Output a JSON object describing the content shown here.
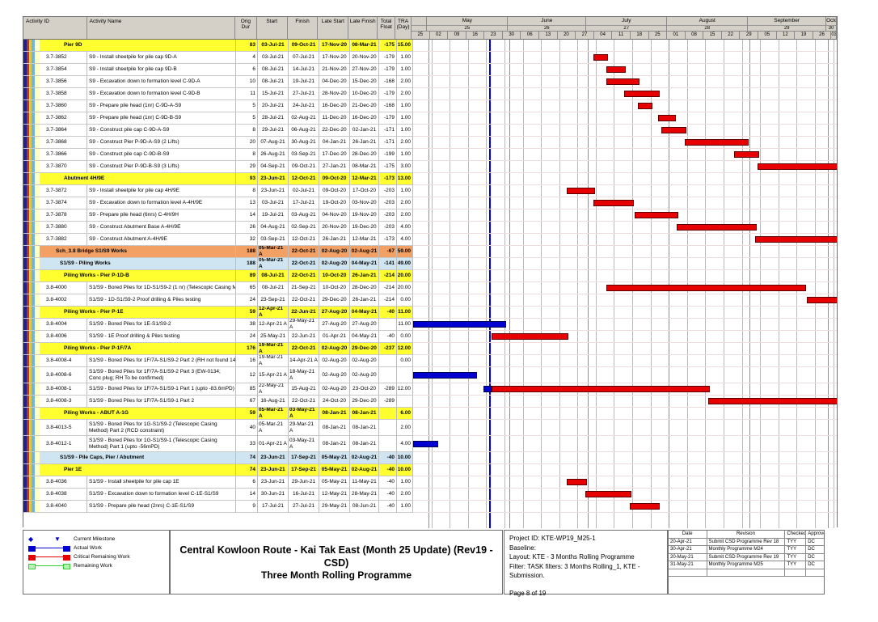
{
  "table": {
    "columns": [
      "Activity ID",
      "Activity Name",
      "Orig Dur",
      "Start",
      "Finish",
      "Late Start",
      "Late Finish",
      "Total Float",
      "TRA (Day)"
    ],
    "rows": [
      {
        "t": "g1",
        "name": "Pier 9D",
        "dur": "83",
        "s": "03-Jul-21",
        "f": "09-Oct-21",
        "ls": "17-Nov-20",
        "lf": "08-Mar-21",
        "fl": "-175",
        "tra": "15.00"
      },
      {
        "t": "task",
        "id": "3.7-3852",
        "name": "S9 - Install sheetpile for pile cap 9D-A",
        "dur": "4",
        "s": "03-Jul-21",
        "f": "07-Jul-21",
        "ls": "17-Nov-20",
        "lf": "20-Nov-20",
        "fl": "-179",
        "tra": "1.00"
      },
      {
        "t": "task",
        "id": "3.7-3854",
        "name": "S9 - Install sheetpile for pile cap 9D-B",
        "dur": "6",
        "s": "08-Jul-21",
        "f": "14-Jul-21",
        "ls": "21-Nov-20",
        "lf": "27-Nov-20",
        "fl": "-179",
        "tra": "1.00"
      },
      {
        "t": "task",
        "id": "3.7-3856",
        "name": "S9 - Excavation down to formation level C-9D-A",
        "dur": "10",
        "s": "08-Jul-21",
        "f": "19-Jul-21",
        "ls": "04-Dec-20",
        "lf": "15-Dec-20",
        "fl": "-168",
        "tra": "2.00"
      },
      {
        "t": "task",
        "id": "3.7-3858",
        "name": "S9 - Excavation down to formation level C-9D-B",
        "dur": "11",
        "s": "15-Jul-21",
        "f": "27-Jul-21",
        "ls": "28-Nov-20",
        "lf": "10-Dec-20",
        "fl": "-179",
        "tra": "2.00"
      },
      {
        "t": "task",
        "id": "3.7-3860",
        "name": "S9 - Prepare pile head (1nr) C-9D-A-S9",
        "dur": "5",
        "s": "20-Jul-21",
        "f": "24-Jul-21",
        "ls": "16-Dec-20",
        "lf": "21-Dec-20",
        "fl": "-168",
        "tra": "1.00"
      },
      {
        "t": "task",
        "id": "3.7-3862",
        "name": "S9 - Prepare pile head (1nr) C-9D-B-S9",
        "dur": "5",
        "s": "28-Jul-21",
        "f": "02-Aug-21",
        "ls": "11-Dec-20",
        "lf": "16-Dec-20",
        "fl": "-179",
        "tra": "1.00"
      },
      {
        "t": "task",
        "id": "3.7-3864",
        "name": "S9 - Construct pile cap C-9D-A-S9",
        "dur": "8",
        "s": "29-Jul-21",
        "f": "06-Aug-21",
        "ls": "22-Dec-20",
        "lf": "02-Jan-21",
        "fl": "-171",
        "tra": "1.00"
      },
      {
        "t": "task",
        "id": "3.7-3868",
        "name": "S9 - Construct Pier P-9D-A-S9 (2 Lifts)",
        "dur": "20",
        "s": "07-Aug-21",
        "f": "30-Aug-21",
        "ls": "04-Jan-21",
        "lf": "26-Jan-21",
        "fl": "-171",
        "tra": "2.00"
      },
      {
        "t": "task",
        "id": "3.7-3866",
        "name": "S9 - Construct pile cap C-9D-B-S9",
        "dur": "8",
        "s": "26-Aug-21",
        "f": "03-Sep-21",
        "ls": "17-Dec-20",
        "lf": "28-Dec-20",
        "fl": "-199",
        "tra": "1.00"
      },
      {
        "t": "task",
        "id": "3.7-3870",
        "name": "S9 - Construct Pier P-9D-B-S9 (3 Lifts)",
        "dur": "29",
        "s": "04-Sep-21",
        "f": "09-Oct-21",
        "ls": "27-Jan-21",
        "lf": "08-Mar-21",
        "fl": "-175",
        "tra": "3.00"
      },
      {
        "t": "g1",
        "name": "Abutment 4H/9E",
        "dur": "93",
        "s": "23-Jun-21",
        "f": "12-Oct-21",
        "ls": "09-Oct-20",
        "lf": "12-Mar-21",
        "fl": "-173",
        "tra": "13.00"
      },
      {
        "t": "task",
        "id": "3.7-3872",
        "name": "S9 - Install sheetpile for pile cap 4H/9E",
        "dur": "8",
        "s": "23-Jun-21",
        "f": "02-Jul-21",
        "ls": "09-Oct-20",
        "lf": "17-Oct-20",
        "fl": "-203",
        "tra": "1.00"
      },
      {
        "t": "task",
        "id": "3.7-3874",
        "name": "S9 - Excavation down to formation level A-4H/9E",
        "dur": "13",
        "s": "03-Jul-21",
        "f": "17-Jul-21",
        "ls": "19-Oct-20",
        "lf": "03-Nov-20",
        "fl": "-203",
        "tra": "2.00"
      },
      {
        "t": "task",
        "id": "3.7-3878",
        "name": "S9 - Prepare pile head (6nrs) C-4H/9H",
        "dur": "14",
        "s": "19-Jul-21",
        "f": "03-Aug-21",
        "ls": "04-Nov-20",
        "lf": "19-Nov-20",
        "fl": "-203",
        "tra": "2.00"
      },
      {
        "t": "task",
        "id": "3.7-3880",
        "name": "S9 - Construct Abutment Base A-4H/9E",
        "dur": "26",
        "s": "04-Aug-21",
        "f": "02-Sep-21",
        "ls": "20-Nov-20",
        "lf": "19-Dec-20",
        "fl": "-203",
        "tra": "4.00"
      },
      {
        "t": "task",
        "id": "3.7-3882",
        "name": "S9 - Construct Abutment A-4H/9E",
        "dur": "32",
        "s": "03-Sep-21",
        "f": "12-Oct-21",
        "ls": "26-Jan-21",
        "lf": "12-Mar-21",
        "fl": "-173",
        "tra": "4.00"
      },
      {
        "t": "gor",
        "name": "Sch_3.8 Bridge S1/S9 Works",
        "dur": "188",
        "s": "05-Mar-21 A",
        "f": "22-Oct-21",
        "ls": "02-Aug-20",
        "lf": "02-Aug-21",
        "fl": "-67",
        "tra": "59.00"
      },
      {
        "t": "gbl",
        "name": "S1/S9 - Piling Works",
        "dur": "188",
        "s": "05-Mar-21 A",
        "f": "22-Oct-21",
        "ls": "02-Aug-20",
        "lf": "04-May-21",
        "fl": "-141",
        "tra": "49.00"
      },
      {
        "t": "g1",
        "name": "Piling Works - Pier P-1D-B",
        "dur": "89",
        "s": "08-Jul-21",
        "f": "22-Oct-21",
        "ls": "10-Oct-20",
        "lf": "26-Jan-21",
        "fl": "-214",
        "tra": "20.00"
      },
      {
        "t": "task",
        "id": "3.8-4000",
        "name": "S1/S9 - Bored Piles for 1D-S1/S9-2 (1 nr) (Telescopic Casing Method)",
        "dur": "65",
        "s": "08-Jul-21",
        "f": "21-Sep-21",
        "ls": "10-Oct-20",
        "lf": "28-Dec-20",
        "fl": "-214",
        "tra": "20.00"
      },
      {
        "t": "task",
        "id": "3.8-4002",
        "name": "S1/S9 - 1D-S1/S9-2 Proof drilling & Piles testing",
        "dur": "24",
        "s": "23-Sep-21",
        "f": "22-Oct-21",
        "ls": "29-Dec-20",
        "lf": "26-Jan-21",
        "fl": "-214",
        "tra": "0.00"
      },
      {
        "t": "g1",
        "name": "Piling Works - Pier P-1E",
        "dur": "59",
        "s": "12-Apr-21 A",
        "f": "22-Jun-21",
        "ls": "27-Aug-20",
        "lf": "04-May-21",
        "fl": "-40",
        "tra": "11.00"
      },
      {
        "t": "task",
        "id": "3.8-4004",
        "name": "S1/S9 - Bored Piles for 1E-S1/S9-2",
        "dur": "38",
        "s": "12-Apr-21 A",
        "f": "29-May-21 A",
        "ls": "27-Aug-20",
        "lf": "27-Aug-20",
        "fl": "",
        "tra": "11.00"
      },
      {
        "t": "task",
        "id": "3.8-4006",
        "name": "S1/S9 - 1E Proof drilling & Piles testing",
        "dur": "24",
        "s": "25-May-21",
        "f": "22-Jun-21",
        "ls": "01-Apr-21",
        "lf": "04-May-21",
        "fl": "-40",
        "tra": "0.00"
      },
      {
        "t": "g1",
        "name": "Piling Works - Pier P-1F/7A",
        "dur": "176",
        "s": "19-Mar-21 A",
        "f": "22-Oct-21",
        "ls": "02-Aug-20",
        "lf": "29-Dec-20",
        "fl": "-237",
        "tra": "12.00"
      },
      {
        "t": "task",
        "id": "3.8-4008-4",
        "name": "S1/S9 - Bored Piles for 1F/7A-S1/S9-2 Part 2 (RH not found 14/4/21)",
        "dur": "16",
        "s": "19-Mar-21 A",
        "f": "14-Apr-21 A",
        "ls": "02-Aug-20",
        "lf": "02-Aug-20",
        "fl": "",
        "tra": "0.00"
      },
      {
        "t": "task2",
        "id": "3.8-4008-6",
        "name": "S1/S9 - Bored Piles for 1F/7A-S1/S9-2 Part 3 (EW-0134; Conc plug; RH To be confirmed)",
        "dur": "12",
        "s": "15-Apr-21 A",
        "f": "18-May-21 A",
        "ls": "02-Aug-20",
        "lf": "02-Aug-20",
        "fl": "",
        "tra": ""
      },
      {
        "t": "task",
        "id": "3.8-4008-1",
        "name": "S1/S9 - Bored Piles for 1F/7A-S1/S9-1 Part 1 (upto -83.6mPD)",
        "dur": "85",
        "s": "22-May-21 A",
        "f": "15-Aug-21",
        "ls": "02-Aug-20",
        "lf": "23-Oct-20",
        "fl": "-289",
        "tra": "12.00"
      },
      {
        "t": "task",
        "id": "3.8-4008-3",
        "name": "S1/S9 - Bored Piles for 1F/7A-S1/S9-1 Part 2",
        "dur": "67",
        "s": "16-Aug-21",
        "f": "22-Oct-21",
        "ls": "24-Oct-20",
        "lf": "29-Dec-20",
        "fl": "-289",
        "tra": ""
      },
      {
        "t": "g1",
        "name": "Piling Works - ABUT A-1G",
        "dur": "59",
        "s": "05-Mar-21 A",
        "f": "03-May-21 A",
        "ls": "08-Jan-21",
        "lf": "08-Jan-21",
        "fl": "",
        "tra": "6.00"
      },
      {
        "t": "task2",
        "id": "3.8-4013-5",
        "name": "S1/S9 - Bored Piles for 1G-S1/S9-2 (Telescopic Casing Method) Part 2 (RCD constraint)",
        "dur": "40",
        "s": "05-Mar-21 A",
        "f": "29-Mar-21 A",
        "ls": "08-Jan-21",
        "lf": "08-Jan-21",
        "fl": "",
        "tra": "2.00"
      },
      {
        "t": "task2",
        "id": "3.8-4012-1",
        "name": "S1/S9 - Bored Piles for 1G-S1/S9-1 (Telescopic Casing Method) Part 1 (upto -56mPD)",
        "dur": "33",
        "s": "01-Apr-21 A",
        "f": "03-May-21 A",
        "ls": "08-Jan-21",
        "lf": "08-Jan-21",
        "fl": "",
        "tra": "4.00"
      },
      {
        "t": "gbl",
        "name": "S1/S9 - Pile Caps, Pier / Abutment",
        "dur": "74",
        "s": "23-Jun-21",
        "f": "17-Sep-21",
        "ls": "05-May-21",
        "lf": "02-Aug-21",
        "fl": "-40",
        "tra": "10.00"
      },
      {
        "t": "g1",
        "name": "Pier 1E",
        "dur": "74",
        "s": "23-Jun-21",
        "f": "17-Sep-21",
        "ls": "05-May-21",
        "lf": "02-Aug-21",
        "fl": "-40",
        "tra": "10.00"
      },
      {
        "t": "task",
        "id": "3.8-4036",
        "name": "S1/S9 - Install sheetpile for pile cap 1E",
        "dur": "6",
        "s": "23-Jun-21",
        "f": "29-Jun-21",
        "ls": "05-May-21",
        "lf": "11-May-21",
        "fl": "-40",
        "tra": "1.00"
      },
      {
        "t": "task",
        "id": "3.8-4038",
        "name": "S1/S9 - Excavation down to formation level C-1E-S1/S9",
        "dur": "14",
        "s": "30-Jun-21",
        "f": "16-Jul-21",
        "ls": "12-May-21",
        "lf": "28-May-21",
        "fl": "-40",
        "tra": "2.00"
      },
      {
        "t": "task",
        "id": "3.8-4040",
        "name": "S1/S9 - Prepare pile head (2nrs) C-1E-S1/S9",
        "dur": "9",
        "s": "17-Jul-21",
        "f": "27-Jul-21",
        "ls": "29-May-21",
        "lf": "08-Jun-21",
        "fl": "-40",
        "tra": "1.00"
      }
    ]
  },
  "chart_data": {
    "type": "bar",
    "variant": "gantt",
    "title": "Three Month Rolling Programme - activity bars",
    "window": {
      "start_label": "25-Apr-21",
      "end_label": "03-Oct-21",
      "total_days": 163,
      "unit": "weekly columns"
    },
    "data_date_day": 29,
    "months": [
      {
        "name": "",
        "num": "",
        "d0": 0,
        "d1": 6
      },
      {
        "name": "May",
        "num": "25",
        "d0": 6,
        "d1": 37
      },
      {
        "name": "June",
        "num": "26",
        "d0": 37,
        "d1": 67
      },
      {
        "name": "July",
        "num": "27",
        "d0": 67,
        "d1": 98
      },
      {
        "name": "August",
        "num": "28",
        "d0": 98,
        "d1": 129
      },
      {
        "name": "September",
        "num": "29",
        "d0": 129,
        "d1": 159
      },
      {
        "name": "October",
        "num": "30",
        "d0": 159,
        "d1": 163
      }
    ],
    "weeks": [
      "25",
      "02",
      "09",
      "16",
      "23",
      "30",
      "06",
      "13",
      "20",
      "27",
      "04",
      "11",
      "18",
      "25",
      "01",
      "08",
      "15",
      "22",
      "29",
      "05",
      "12",
      "19",
      "26",
      "03"
    ],
    "bars": {
      "3.7-3852": [
        {
          "c": "critical",
          "s": 69,
          "e": 74
        }
      ],
      "3.7-3854": [
        {
          "c": "critical",
          "s": 74,
          "e": 81
        }
      ],
      "3.7-3856": [
        {
          "c": "critical",
          "s": 74,
          "e": 86
        }
      ],
      "3.7-3858": [
        {
          "c": "critical",
          "s": 81,
          "e": 94
        }
      ],
      "3.7-3860": [
        {
          "c": "critical",
          "s": 86,
          "e": 91
        }
      ],
      "3.7-3862": [
        {
          "c": "critical",
          "s": 94,
          "e": 100
        }
      ],
      "3.7-3864": [
        {
          "c": "critical",
          "s": 95,
          "e": 104
        }
      ],
      "3.7-3868": [
        {
          "c": "critical",
          "s": 104,
          "e": 128
        }
      ],
      "3.7-3866": [
        {
          "c": "critical",
          "s": 123,
          "e": 132
        }
      ],
      "3.7-3870": [
        {
          "c": "critical",
          "s": 132,
          "e": 168
        }
      ],
      "3.7-3872": [
        {
          "c": "critical",
          "s": 59,
          "e": 69
        }
      ],
      "3.7-3874": [
        {
          "c": "critical",
          "s": 69,
          "e": 84
        }
      ],
      "3.7-3878": [
        {
          "c": "critical",
          "s": 85,
          "e": 101
        }
      ],
      "3.7-3880": [
        {
          "c": "critical",
          "s": 101,
          "e": 131
        }
      ],
      "3.7-3882": [
        {
          "c": "critical",
          "s": 131,
          "e": 171
        }
      ],
      "3.8-4000": [
        {
          "c": "critical",
          "s": 74,
          "e": 150
        }
      ],
      "3.8-4002": [
        {
          "c": "critical",
          "s": 151,
          "e": 181
        }
      ],
      "3.8-4004": [
        {
          "c": "actual",
          "s": -13,
          "e": 35
        }
      ],
      "3.8-4006": [
        {
          "c": "critical",
          "s": 30,
          "e": 59
        }
      ],
      "3.8-4008-4": [],
      "3.8-4008-6": [
        {
          "c": "actual",
          "s": -10,
          "e": 24
        }
      ],
      "3.8-4008-1": [
        {
          "c": "actual",
          "s": 27,
          "e": 30
        },
        {
          "c": "critical",
          "s": 30,
          "e": 113
        }
      ],
      "3.8-4008-3": [
        {
          "c": "critical",
          "s": 113,
          "e": 181
        }
      ],
      "3.8-4013-5": [],
      "3.8-4012-1": [
        {
          "c": "actual",
          "s": -24,
          "e": 9
        }
      ],
      "3.8-4036": [
        {
          "c": "critical",
          "s": 59,
          "e": 66
        }
      ],
      "3.8-4038": [
        {
          "c": "critical",
          "s": 66,
          "e": 83
        }
      ],
      "3.8-4040": [
        {
          "c": "critical",
          "s": 83,
          "e": 94
        }
      ]
    }
  },
  "colors": {
    "critical_bar": "#e60000",
    "actual_bar": "#0000d0",
    "remaining_bar": "#33cc33",
    "data_date_line": "#0000e6",
    "summary_yellow": "#ffff30",
    "summary_orange": "#f2a064",
    "summary_blue": "#cfe6f2"
  },
  "footer": {
    "legend": [
      {
        "symbol": "milestone",
        "label": "Current Milestone"
      },
      {
        "symbol": "bar-actual",
        "label": "Actual Work"
      },
      {
        "symbol": "bar-critical",
        "label": "Critical Remaining Work"
      },
      {
        "symbol": "bar-remaining",
        "label": "Remaining Work"
      }
    ],
    "title": {
      "line1": "Central Kowloon Route - Kai Tak East (Month 25 Update) (Rev19 - CSD)",
      "line2": "Three Month Rolling Programme"
    },
    "project": {
      "lines": [
        "Project ID: KTE-WP19_M25-1",
        "Baseline:",
        "Layout: KTE - 3 Months Rolling Programme",
        "Filter: TASK filters: 3 Months Rolling_1, KTE - Submission."
      ],
      "page_label": "Page 8 of 19"
    },
    "revisions": {
      "headers": [
        "Date",
        "Revision",
        "Checked",
        "Approved"
      ],
      "rows": [
        [
          "20-Apr-21",
          "Submit CSD Programme Rev 18",
          "TYY",
          "DC"
        ],
        [
          "30-Apr-21",
          "Monthly Programme M24",
          "TYY",
          "DC"
        ],
        [
          "20-May-21",
          "Submit CSD Programme Rev 19",
          "TYY",
          "DC"
        ],
        [
          "31-May-21",
          "Monthly Programme M25",
          "TYY",
          "DC"
        ],
        [
          "",
          "",
          "",
          ""
        ]
      ]
    }
  }
}
